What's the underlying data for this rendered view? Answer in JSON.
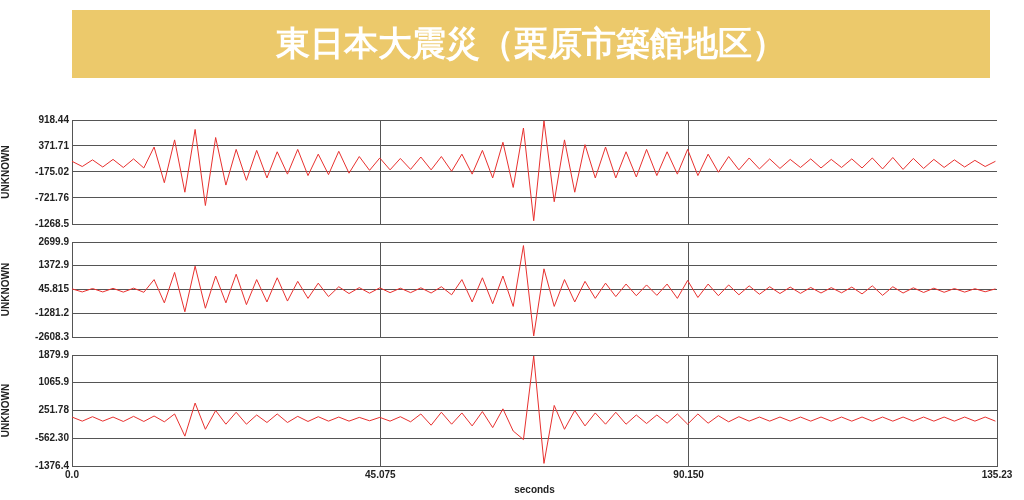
{
  "chart_data": [
    {
      "type": "line",
      "title": "東日本大震災（栗原市築館地区）",
      "ylabel": "UNKNOWN",
      "grid": true,
      "legend": false,
      "tick_labels": "y",
      "x": [
        0,
        1.5,
        3,
        4.5,
        6,
        7.5,
        9,
        10.5,
        12,
        13.5,
        15,
        16.5,
        18,
        19.5,
        21,
        22.5,
        24,
        25.5,
        27,
        28.5,
        30,
        31.5,
        33,
        34.5,
        36,
        37.5,
        39,
        40.5,
        42,
        43.5,
        45,
        46.5,
        48,
        49.5,
        51,
        52.5,
        54,
        55.5,
        57,
        58.5,
        60,
        61.5,
        63,
        64.5,
        66,
        67.5,
        69,
        70.5,
        72,
        73.5,
        75,
        76.5,
        78,
        79.5,
        81,
        82.5,
        84,
        85.5,
        87,
        88.5,
        90,
        91.5,
        93,
        94.5,
        96,
        97.5,
        99,
        100.5,
        102,
        103.5,
        105,
        106.5,
        108,
        109.5,
        111,
        112.5,
        114,
        115.5,
        117,
        118.5,
        120,
        121.5,
        123,
        124.5,
        126,
        127.5,
        129,
        130.5,
        132,
        133.5,
        135
      ],
      "xlim": [
        0,
        135.23
      ],
      "xticks": [
        {
          "value": 45.075,
          "label": null
        },
        {
          "value": 90.15,
          "label": null
        }
      ],
      "ylim": [
        -1268.5,
        918.44
      ],
      "yticks": [
        -1268.5,
        -721.76,
        -175.02,
        371.71,
        918.44
      ],
      "series": [
        {
          "color": "#e8312f",
          "values": [
            50,
            -60,
            80,
            -70,
            90,
            -80,
            100,
            -90,
            350,
            -400,
            500,
            -600,
            720,
            -880,
            550,
            -450,
            300,
            -350,
            280,
            -300,
            250,
            -220,
            300,
            -250,
            200,
            -230,
            260,
            -200,
            150,
            -140,
            120,
            -130,
            110,
            -120,
            140,
            -130,
            150,
            -160,
            200,
            -220,
            280,
            -300,
            450,
            -500,
            750,
            -1200,
            900,
            -800,
            500,
            -600,
            400,
            -300,
            350,
            -300,
            250,
            -280,
            300,
            -250,
            250,
            -220,
            300,
            -250,
            200,
            -180,
            150,
            -130,
            120,
            -110,
            100,
            -100,
            90,
            -80,
            100,
            -90,
            90,
            -80,
            100,
            -90,
            120,
            -110,
            130,
            -120,
            110,
            -100,
            90,
            -80,
            80,
            -70,
            70,
            -60,
            50
          ]
        }
      ]
    },
    {
      "type": "line",
      "ylabel": "UNKNOWN",
      "grid": true,
      "legend": false,
      "tick_labels": "y",
      "x": [
        0,
        1.5,
        3,
        4.5,
        6,
        7.5,
        9,
        10.5,
        12,
        13.5,
        15,
        16.5,
        18,
        19.5,
        21,
        22.5,
        24,
        25.5,
        27,
        28.5,
        30,
        31.5,
        33,
        34.5,
        36,
        37.5,
        39,
        40.5,
        42,
        43.5,
        45,
        46.5,
        48,
        49.5,
        51,
        52.5,
        54,
        55.5,
        57,
        58.5,
        60,
        61.5,
        63,
        64.5,
        66,
        67.5,
        69,
        70.5,
        72,
        73.5,
        75,
        76.5,
        78,
        79.5,
        81,
        82.5,
        84,
        85.5,
        87,
        88.5,
        90,
        91.5,
        93,
        94.5,
        96,
        97.5,
        99,
        100.5,
        102,
        103.5,
        105,
        106.5,
        108,
        109.5,
        111,
        112.5,
        114,
        115.5,
        117,
        118.5,
        120,
        121.5,
        123,
        124.5,
        126,
        127.5,
        129,
        130.5,
        132,
        133.5,
        135
      ],
      "xlim": [
        0,
        135.23
      ],
      "xticks": [
        {
          "value": 45.075,
          "label": null
        },
        {
          "value": 90.15,
          "label": null
        }
      ],
      "ylim": [
        -2608.3,
        2699.9
      ],
      "yticks": [
        -2608.3,
        -1281.2,
        45.815,
        1372.9,
        2699.9
      ],
      "series": [
        {
          "color": "#e8312f",
          "values": [
            80,
            -90,
            100,
            -90,
            110,
            -100,
            120,
            -110,
            600,
            -700,
            1000,
            -1200,
            1350,
            -1000,
            800,
            -700,
            900,
            -800,
            600,
            -650,
            700,
            -600,
            500,
            -450,
            400,
            -350,
            200,
            -180,
            150,
            -160,
            140,
            -130,
            120,
            -130,
            140,
            -150,
            200,
            -250,
            600,
            -650,
            700,
            -750,
            800,
            -900,
            2500,
            -2550,
            1200,
            -900,
            600,
            -650,
            500,
            -450,
            400,
            -350,
            350,
            -300,
            300,
            -280,
            350,
            -450,
            550,
            -400,
            350,
            -300,
            300,
            -250,
            250,
            -220,
            200,
            -180,
            180,
            -170,
            160,
            -150,
            150,
            -140,
            180,
            -200,
            250,
            -280,
            200,
            -150,
            140,
            -120,
            120,
            -110,
            100,
            -100,
            90,
            -80,
            80
          ]
        }
      ]
    },
    {
      "type": "line",
      "ylabel": "UNKNOWN",
      "xlabel": "seconds",
      "grid": true,
      "legend": false,
      "x": [
        0,
        1.5,
        3,
        4.5,
        6,
        7.5,
        9,
        10.5,
        12,
        13.5,
        15,
        16.5,
        18,
        19.5,
        21,
        22.5,
        24,
        25.5,
        27,
        28.5,
        30,
        31.5,
        33,
        34.5,
        36,
        37.5,
        39,
        40.5,
        42,
        43.5,
        45,
        46.5,
        48,
        49.5,
        51,
        52.5,
        54,
        55.5,
        57,
        58.5,
        60,
        61.5,
        63,
        64.5,
        66,
        67.5,
        69,
        70.5,
        72,
        73.5,
        75,
        76.5,
        78,
        79.5,
        81,
        82.5,
        84,
        85.5,
        87,
        88.5,
        90,
        91.5,
        93,
        94.5,
        96,
        97.5,
        99,
        100.5,
        102,
        103.5,
        105,
        106.5,
        108,
        109.5,
        111,
        112.5,
        114,
        115.5,
        117,
        118.5,
        120,
        121.5,
        123,
        124.5,
        126,
        127.5,
        129,
        130.5,
        132,
        133.5,
        135
      ],
      "xlim": [
        0,
        135.23
      ],
      "xticks": [
        {
          "value": 0,
          "label": "0.0"
        },
        45.075,
        {
          "value": 90.15,
          "label": "90.150"
        },
        135.23
      ],
      "ylim": [
        -1376.4,
        1879.9
      ],
      "yticks": [
        -1376.4,
        {
          "value": -562.3,
          "label": "-562.30"
        },
        251.78,
        1065.9,
        1879.9
      ],
      "series": [
        {
          "color": "#e8312f",
          "values": [
            60,
            -60,
            70,
            -60,
            60,
            -70,
            80,
            -70,
            90,
            -80,
            150,
            -500,
            470,
            -300,
            250,
            -150,
            200,
            -150,
            120,
            -100,
            150,
            -100,
            80,
            -70,
            70,
            -60,
            60,
            -60,
            50,
            -50,
            50,
            -60,
            70,
            -80,
            150,
            -180,
            200,
            -150,
            180,
            -200,
            220,
            -250,
            300,
            -350,
            -600,
            1850,
            -1300,
            400,
            -300,
            250,
            -200,
            180,
            -150,
            200,
            -150,
            120,
            -130,
            120,
            -120,
            150,
            -150,
            150,
            -120,
            100,
            -80,
            70,
            -60,
            60,
            -60,
            60,
            -60,
            60,
            -60,
            60,
            -60,
            60,
            -60,
            60,
            -60,
            60,
            -60,
            60,
            -60,
            60,
            -60,
            60,
            -60,
            60,
            -60,
            60,
            -60
          ]
        }
      ]
    }
  ]
}
